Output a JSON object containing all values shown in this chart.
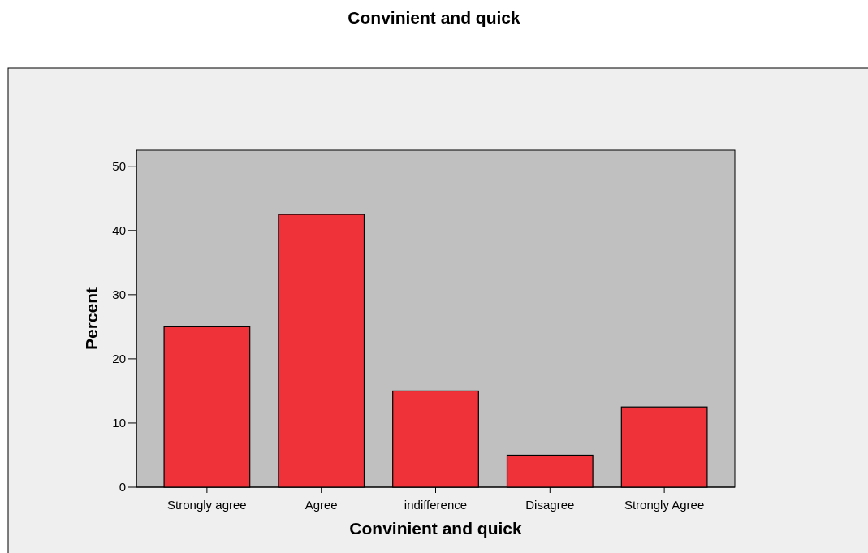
{
  "chart_data": {
    "type": "bar",
    "title": "Convinient and quick",
    "xlabel": "Convinient and quick",
    "ylabel": "Percent",
    "categories": [
      "Strongly agree",
      "Agree",
      "indifference",
      "Disagree",
      "Strongly Agree"
    ],
    "values": [
      25,
      42.5,
      15,
      5,
      12.5
    ],
    "color": "#ef3239",
    "ylim": [
      0,
      52.5
    ],
    "yticks": [
      0,
      10,
      20,
      30,
      40,
      50
    ],
    "grid": false
  }
}
